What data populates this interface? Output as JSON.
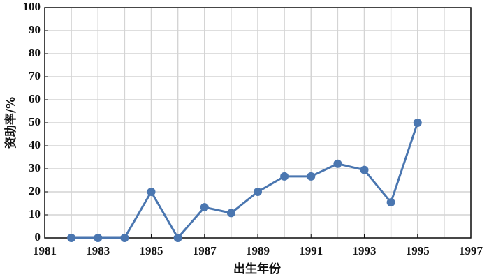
{
  "chart_data": {
    "type": "line",
    "xlabel": "出生年份",
    "ylabel": "资助率/%",
    "x": [
      1982,
      1983,
      1984,
      1985,
      1986,
      1987,
      1988,
      1989,
      1990,
      1991,
      1992,
      1993,
      1994,
      1995
    ],
    "series": [
      {
        "name": "资助率",
        "color": "#4a76b0",
        "values": [
          0,
          0,
          0,
          20,
          0,
          13.3,
          10.8,
          20,
          26.7,
          26.7,
          32.2,
          29.5,
          15.4,
          50
        ]
      }
    ],
    "xlim": [
      1981,
      1997
    ],
    "xticks": [
      1981,
      1983,
      1985,
      1987,
      1989,
      1991,
      1993,
      1995,
      1997
    ],
    "x_minor_ticks": [
      1982,
      1984,
      1986,
      1988,
      1990,
      1992,
      1994,
      1996
    ],
    "ylim": [
      0,
      100
    ],
    "yticks": [
      0,
      10,
      20,
      30,
      40,
      50,
      60,
      70,
      80,
      90,
      100
    ],
    "grid": true
  }
}
